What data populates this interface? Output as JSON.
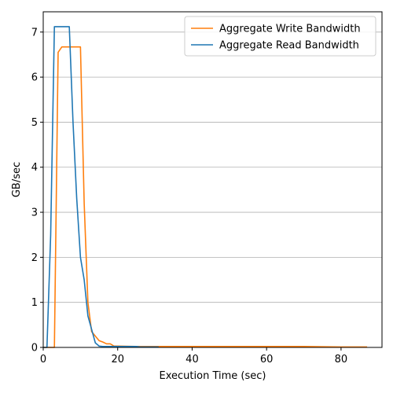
{
  "chart_data": {
    "type": "line",
    "xlabel": "Execution Time (sec)",
    "ylabel": "GB/sec",
    "xlim": [
      0,
      91
    ],
    "ylim": [
      0,
      7.45
    ],
    "xticks": [
      0,
      20,
      40,
      60,
      80
    ],
    "yticks": [
      0,
      1,
      2,
      3,
      4,
      5,
      6,
      7
    ],
    "grid": "y",
    "legend_position": "top-right",
    "series": [
      {
        "name": "Aggregate Write Bandwidth",
        "color": "#ff7f0e",
        "x": [
          0,
          1,
          2,
          3,
          4,
          5,
          6,
          7,
          8,
          9,
          10,
          11,
          12,
          13,
          14,
          15,
          16,
          17,
          18,
          19,
          20,
          25,
          30,
          40,
          50,
          60,
          70,
          80,
          87
        ],
        "y": [
          0,
          0,
          0,
          0,
          6.55,
          6.67,
          6.67,
          6.67,
          6.67,
          6.67,
          6.67,
          3.2,
          1.0,
          0.35,
          0.25,
          0.15,
          0.12,
          0.08,
          0.08,
          0.03,
          0.03,
          0.02,
          0.02,
          0.02,
          0.02,
          0.02,
          0.02,
          0.01,
          0.01
        ]
      },
      {
        "name": "Aggregate Read Bandwidth",
        "color": "#1f77b4",
        "x": [
          0,
          1,
          2,
          3,
          4,
          5,
          6,
          7,
          8,
          9,
          10,
          11,
          12,
          13,
          14,
          15,
          16,
          17,
          18,
          19,
          20,
          25,
          26,
          30,
          31
        ],
        "y": [
          0,
          0,
          2.5,
          7.12,
          7.12,
          7.12,
          7.12,
          7.12,
          5.0,
          3.3,
          2.0,
          1.5,
          0.7,
          0.4,
          0.1,
          0.03,
          0.02,
          0.02,
          0.02,
          0.02,
          0.02,
          0.02,
          0.01,
          0.01,
          0.01
        ]
      }
    ]
  }
}
